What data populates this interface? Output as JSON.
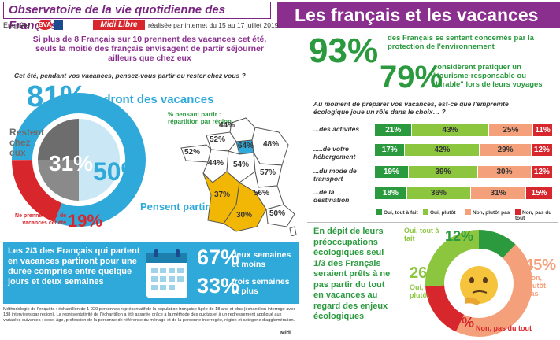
{
  "header": {
    "left_title": "Observatoire de la vie quotidienne des Français",
    "right_title": "Les français et les vacances vertes",
    "enquete": "Enquête",
    "bva": "BVA",
    "midi_libre": "Midi Libre",
    "realisee": "réalisée par internet du 15 au 17 juillet 2019"
  },
  "intro": "Si plus de 8 Français sur 10 prennent des vacances cet été, seuls la moitié des français envisagent de partir séjourner ailleurs que chez eux",
  "question1": "Cet été, pendant vos vacances, pensez-vous partir ou rester chez vous ?",
  "colors": {
    "purple": "#8b2f8f",
    "blue": "#2fa9d9",
    "green": "#2b9a3f",
    "lightgreen": "#8cc63f",
    "salmon": "#f4a07a",
    "red": "#d7262c",
    "grey": "#6d6d6d",
    "yellow": "#f2b705"
  },
  "chart_data": [
    {
      "type": "pie",
      "title": "",
      "items": [
        {
          "label": "Prendront des vacances",
          "value": 81
        },
        {
          "label": "Ne prennent pas de vacances cet été",
          "value": 19
        },
        {
          "label": "Restent chez eux",
          "value": 31
        },
        {
          "label": "Pensent partir",
          "value": 50
        }
      ]
    },
    {
      "type": "map",
      "title": "% pensant partir : répartition par région",
      "regions": [
        {
          "name": "Hauts-de-France",
          "value": 44
        },
        {
          "name": "Normandie",
          "value": 52
        },
        {
          "name": "Île-de-France",
          "value": 64
        },
        {
          "name": "Grand Est",
          "value": 48
        },
        {
          "name": "Bretagne",
          "value": 52
        },
        {
          "name": "Pays de la Loire",
          "value": 44
        },
        {
          "name": "Centre-Val de Loire",
          "value": 54
        },
        {
          "name": "Bourgogne-Franche-Comté",
          "value": 57
        },
        {
          "name": "Nouvelle-Aquitaine",
          "value": 37
        },
        {
          "name": "Occitanie",
          "value": 30
        },
        {
          "name": "Auvergne-Rhône-Alpes",
          "value": 56
        },
        {
          "name": "Provence-Alpes-Côte d'Azur / Corse",
          "value": 50
        }
      ]
    },
    {
      "type": "bar",
      "title": "Au moment de préparer vos vacances, est-ce que l'empreinte écologique joue un rôle dans le choix… ?",
      "categories": [
        "...des activités",
        ".....de votre hébergement",
        "...du mode de transport",
        "...de la destination"
      ],
      "series": [
        {
          "name": "Oui, tout à fait",
          "values": [
            21,
            17,
            19,
            18
          ]
        },
        {
          "name": "Oui, plutôt",
          "values": [
            43,
            42,
            39,
            36
          ]
        },
        {
          "name": "Non, plutôt pas",
          "values": [
            25,
            29,
            30,
            31
          ]
        },
        {
          "name": "Non, pas du tout",
          "values": [
            11,
            12,
            12,
            15
          ]
        }
      ]
    },
    {
      "type": "pie",
      "title": "",
      "items": [
        {
          "label": "Oui, tout à fait",
          "value": 12
        },
        {
          "label": "Oui, plutôt",
          "value": 26
        },
        {
          "label": "Non, plutôt pas",
          "value": 45
        },
        {
          "label": "Non, pas du tout",
          "value": 17
        }
      ]
    }
  ],
  "labels": {
    "pct81": "81%",
    "prendront": "Prendront des vacances",
    "pct31": "31%",
    "restent": "Restent chez eux",
    "pct50": "50%",
    "pensent": "Pensent partir",
    "pct19": "19%",
    "ne_prennent": "Ne prennent pas de vacances cet été",
    "map_title": "% pensant partir : répartition par région"
  },
  "bottom_left": {
    "text": "Les 2/3 des Français qui partent en vacances partiront pour une durée comprise entre quelque jours et deux semaines",
    "pct67": "67%",
    "lbl67": "deux semaines et moins",
    "pct33": "33%",
    "lbl33": "trois semaines et plus"
  },
  "note": "Méthodologie de l'enquête : échantillon de 1 020 personnes représentatif de la population française âgée de 18 ans et plus (échantillon interrogé avec 188 interviews par région). La représentativité de l'échantillon a été assurée grâce à la méthode des quotas et à un redressement appliqué aux variables suivantes : sexe, âge, profession de la personne de référence du ménage et de la personne interrogée, région et catégorie d'agglomération.",
  "right": {
    "pct93": "93%",
    "txt93": "des Français se sentent concernés par la protection de l'environnement",
    "pct79": "79%",
    "txt79": "considèrent pratiquer un \"tourisme-responsable ou durable\" lors de leurs voyages",
    "question": "Au moment de préparer vos vacances, est-ce que l'empreinte écologique joue un rôle dans le choix… ?",
    "legend": [
      "Oui, tout à fait",
      "Oui, plutôt",
      "Non, plutôt pas",
      "Non, pas du tout"
    ],
    "bottom_text": "En dépit de leurs préoccupations écologiques seul 1/3 des Français seraient prêts à ne pas partir du tout en vacances au regard des enjeux écologiques",
    "donut_labels": {
      "p12": "12%",
      "l12": "Oui, tout à fait",
      "p26": "26%",
      "l26": "Oui, plutôt",
      "p45": "45%",
      "l45": "Non, plutôt pas",
      "p17": "17%",
      "l17": "Non, pas du tout"
    }
  },
  "footer_mark": "Midi"
}
